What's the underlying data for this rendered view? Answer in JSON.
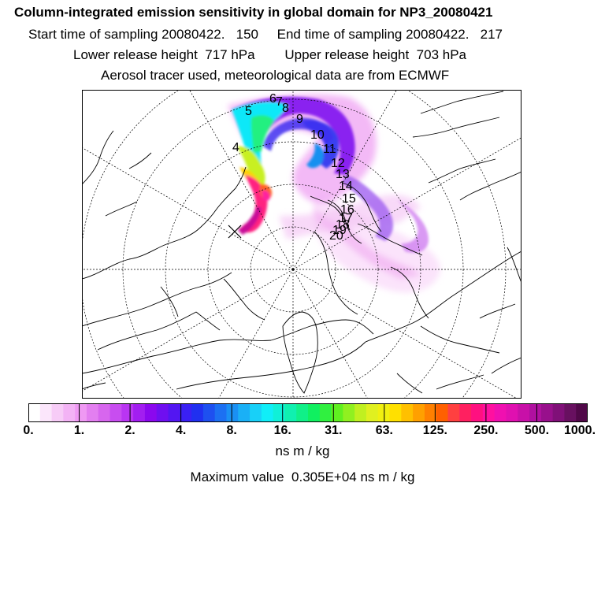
{
  "header": {
    "title": "Column-integrated emission sensitivity in global domain for NP3_20080421",
    "sampling": "Start time of sampling 20080422.   150     End time of sampling 20080422.   217",
    "release": "Lower release height  717 hPa        Upper release height  703 hPa",
    "tracer": "Aerosol tracer used, meteorological data are from ECMWF"
  },
  "map": {
    "track_labels": [
      "4",
      "5",
      "6",
      "7",
      "8",
      "9",
      "10",
      "11",
      "12",
      "13",
      "14",
      "15",
      "16",
      "17",
      "18",
      "19",
      "20"
    ]
  },
  "colorbar": {
    "tick_labels": [
      "0.",
      "1.",
      "2.",
      "4.",
      "8.",
      "16.",
      "31.",
      "63.",
      "125.",
      "250.",
      "500.",
      "1000."
    ],
    "colors": [
      "#ffffff",
      "#fbe6fb",
      "#f7ccf7",
      "#f3b3f5",
      "#ef99f3",
      "#e37ff0",
      "#d766ee",
      "#c84df0",
      "#b935f2",
      "#a21ef0",
      "#8b08ee",
      "#6f0ff0",
      "#5316f2",
      "#3a20f4",
      "#2030f0",
      "#1e50f0",
      "#1c70f2",
      "#1a90f4",
      "#1ab0f6",
      "#18d0f8",
      "#10eef8",
      "#10f0d8",
      "#10f0b0",
      "#10f088",
      "#10f060",
      "#30f040",
      "#60f020",
      "#90f020",
      "#c0f020",
      "#e0f020",
      "#f0f010",
      "#ffe000",
      "#ffc000",
      "#ffa000",
      "#ff8000",
      "#ff6000",
      "#ff4040",
      "#ff2060",
      "#ff1080",
      "#ff10a0",
      "#f010b0",
      "#e010b0",
      "#c810a8",
      "#b010a0",
      "#98108c",
      "#801078",
      "#681060",
      "#500848"
    ],
    "units": "ns m / kg"
  },
  "max_value_text": "Maximum value  0.305E+04 ns m / kg"
}
